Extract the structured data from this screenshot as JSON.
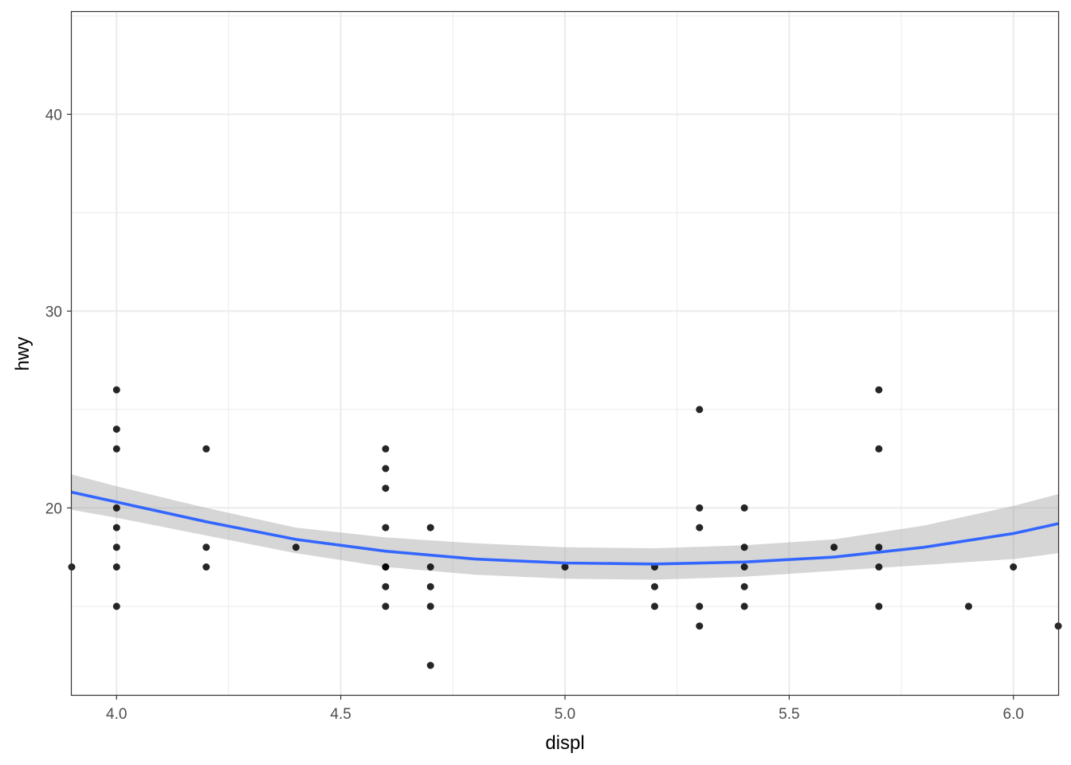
{
  "chart_data": {
    "type": "scatter",
    "xlabel": "displ",
    "ylabel": "hwy",
    "xlim": [
      3.9,
      6.1
    ],
    "ylim": [
      10.5,
      45.2
    ],
    "x_ticks": [
      4.0,
      4.5,
      5.0,
      5.5,
      6.0
    ],
    "x_tick_labels": [
      "4.0",
      "4.5",
      "5.0",
      "5.5",
      "6.0"
    ],
    "y_ticks": [
      20,
      30,
      40
    ],
    "y_tick_labels": [
      "20",
      "30",
      "40"
    ],
    "x_minor_ticks": [
      4.25,
      4.75,
      5.25,
      5.75
    ],
    "y_minor_ticks": [
      15,
      25,
      35,
      45
    ],
    "grid": true,
    "panel_border": true,
    "points": {
      "color": "#000000",
      "x": [
        3.9,
        4.0,
        4.0,
        4.0,
        4.0,
        4.0,
        4.0,
        4.0,
        4.0,
        4.2,
        4.2,
        4.2,
        4.4,
        4.6,
        4.6,
        4.6,
        4.6,
        4.6,
        4.6,
        4.6,
        4.6,
        4.7,
        4.7,
        4.7,
        4.7,
        4.7,
        5.0,
        5.2,
        5.2,
        5.2,
        5.3,
        5.3,
        5.3,
        5.3,
        5.3,
        5.4,
        5.4,
        5.4,
        5.4,
        5.4,
        5.6,
        5.7,
        5.7,
        5.7,
        5.7,
        5.7,
        5.9,
        6.0,
        6.1
      ],
      "y": [
        17,
        26,
        24,
        23,
        20,
        19,
        18,
        17,
        15,
        23,
        18,
        17,
        18,
        23,
        22,
        21,
        19,
        17,
        16,
        15,
        17,
        19,
        17,
        16,
        15,
        12,
        17,
        17,
        16,
        15,
        25,
        20,
        19,
        15,
        14,
        20,
        18,
        17,
        16,
        15,
        18,
        26,
        23,
        18,
        17,
        15,
        15,
        17,
        14
      ]
    },
    "smooth": {
      "color": "#3366ff",
      "band_color": "#999999",
      "x": [
        3.9,
        4.0,
        4.2,
        4.4,
        4.6,
        4.8,
        5.0,
        5.2,
        5.4,
        5.6,
        5.8,
        6.0,
        6.1
      ],
      "y": [
        20.8,
        20.3,
        19.3,
        18.4,
        17.8,
        17.4,
        17.2,
        17.15,
        17.25,
        17.5,
        18.0,
        18.7,
        19.2
      ],
      "ymin": [
        19.9,
        19.5,
        18.6,
        17.7,
        17.0,
        16.6,
        16.4,
        16.35,
        16.5,
        16.8,
        17.1,
        17.4,
        17.7
      ],
      "ymax": [
        21.7,
        21.1,
        20.0,
        19.0,
        18.5,
        18.2,
        18.0,
        17.95,
        18.1,
        18.4,
        19.1,
        20.1,
        20.7
      ]
    }
  }
}
